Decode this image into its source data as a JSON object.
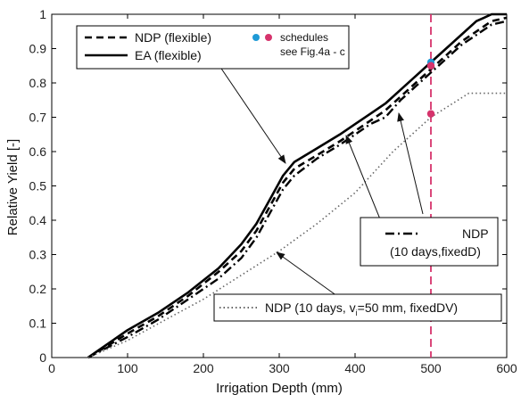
{
  "chart_data": {
    "type": "line",
    "xlabel": "Irrigation Depth (mm)",
    "ylabel": "Relative Yield [-]",
    "xlim": [
      0,
      600
    ],
    "ylim": [
      0,
      1
    ],
    "xticks": [
      0,
      100,
      200,
      300,
      400,
      500,
      600
    ],
    "yticks": [
      0,
      0.1,
      0.2,
      0.3,
      0.4,
      0.5,
      0.6,
      0.7,
      0.8,
      0.9,
      1
    ],
    "grid": false,
    "series": [
      {
        "name": "EA (flexible)",
        "style": "solid",
        "color": "#000000",
        "x": [
          48,
          100,
          140,
          180,
          220,
          250,
          270,
          290,
          305,
          320,
          350,
          380,
          400,
          420,
          440,
          460,
          480,
          500,
          520,
          540,
          560,
          570,
          580,
          600
        ],
        "y": [
          0,
          0.08,
          0.13,
          0.19,
          0.26,
          0.33,
          0.39,
          0.47,
          0.53,
          0.57,
          0.61,
          0.65,
          0.68,
          0.71,
          0.74,
          0.78,
          0.82,
          0.86,
          0.9,
          0.94,
          0.98,
          0.99,
          1.0,
          1.0
        ]
      },
      {
        "name": "NDP (flexible)",
        "style": "dashed",
        "color": "#000000",
        "x": [
          48,
          100,
          140,
          180,
          220,
          250,
          270,
          290,
          305,
          320,
          350,
          380,
          400,
          420,
          440,
          460,
          480,
          500,
          520,
          540,
          560,
          580,
          600
        ],
        "y": [
          0,
          0.07,
          0.12,
          0.18,
          0.25,
          0.31,
          0.37,
          0.45,
          0.51,
          0.55,
          0.59,
          0.63,
          0.66,
          0.69,
          0.72,
          0.76,
          0.8,
          0.84,
          0.88,
          0.92,
          0.95,
          0.98,
          0.99
        ]
      },
      {
        "name": "NDP (10 days,fixedD)",
        "style": "dashdot",
        "color": "#000000",
        "x": [
          48,
          100,
          140,
          180,
          220,
          250,
          270,
          290,
          305,
          320,
          350,
          380,
          400,
          420,
          440,
          460,
          480,
          500,
          520,
          540,
          560,
          580,
          600
        ],
        "y": [
          0,
          0.06,
          0.11,
          0.17,
          0.23,
          0.29,
          0.35,
          0.43,
          0.49,
          0.53,
          0.58,
          0.62,
          0.65,
          0.68,
          0.7,
          0.75,
          0.79,
          0.83,
          0.87,
          0.91,
          0.94,
          0.97,
          0.98
        ]
      },
      {
        "name": "NDP (10 days, vi=50 mm, fixedDV)",
        "style": "dotted",
        "color": "#666666",
        "x": [
          48,
          100,
          150,
          200,
          250,
          300,
          350,
          400,
          450,
          500,
          550,
          600
        ],
        "y": [
          0,
          0.05,
          0.11,
          0.17,
          0.24,
          0.31,
          0.39,
          0.48,
          0.6,
          0.7,
          0.77,
          0.77
        ]
      }
    ],
    "vertical_line": {
      "x": 500,
      "style": "dashed",
      "color": "#d6336c"
    },
    "points": [
      {
        "x": 500,
        "y": 0.86,
        "color": "#1f9ad6"
      },
      {
        "x": 500,
        "y": 0.85,
        "color": "#d6336c"
      },
      {
        "x": 500,
        "y": 0.71,
        "color": "#d6336c"
      }
    ]
  },
  "legend_main": {
    "ndp_flexible": "NDP (flexible)",
    "ea_flexible": "EA (flexible)",
    "schedules": "schedules",
    "see_fig": "see Fig.4a - c"
  },
  "legend_fixed_d": {
    "line1": "NDP",
    "line2": "(10 days,fixedD)"
  },
  "legend_fixed_dv": {
    "prefix": "NDP (10 days, v",
    "subscript": "i",
    "suffix": "=50 mm, fixedDV)"
  }
}
